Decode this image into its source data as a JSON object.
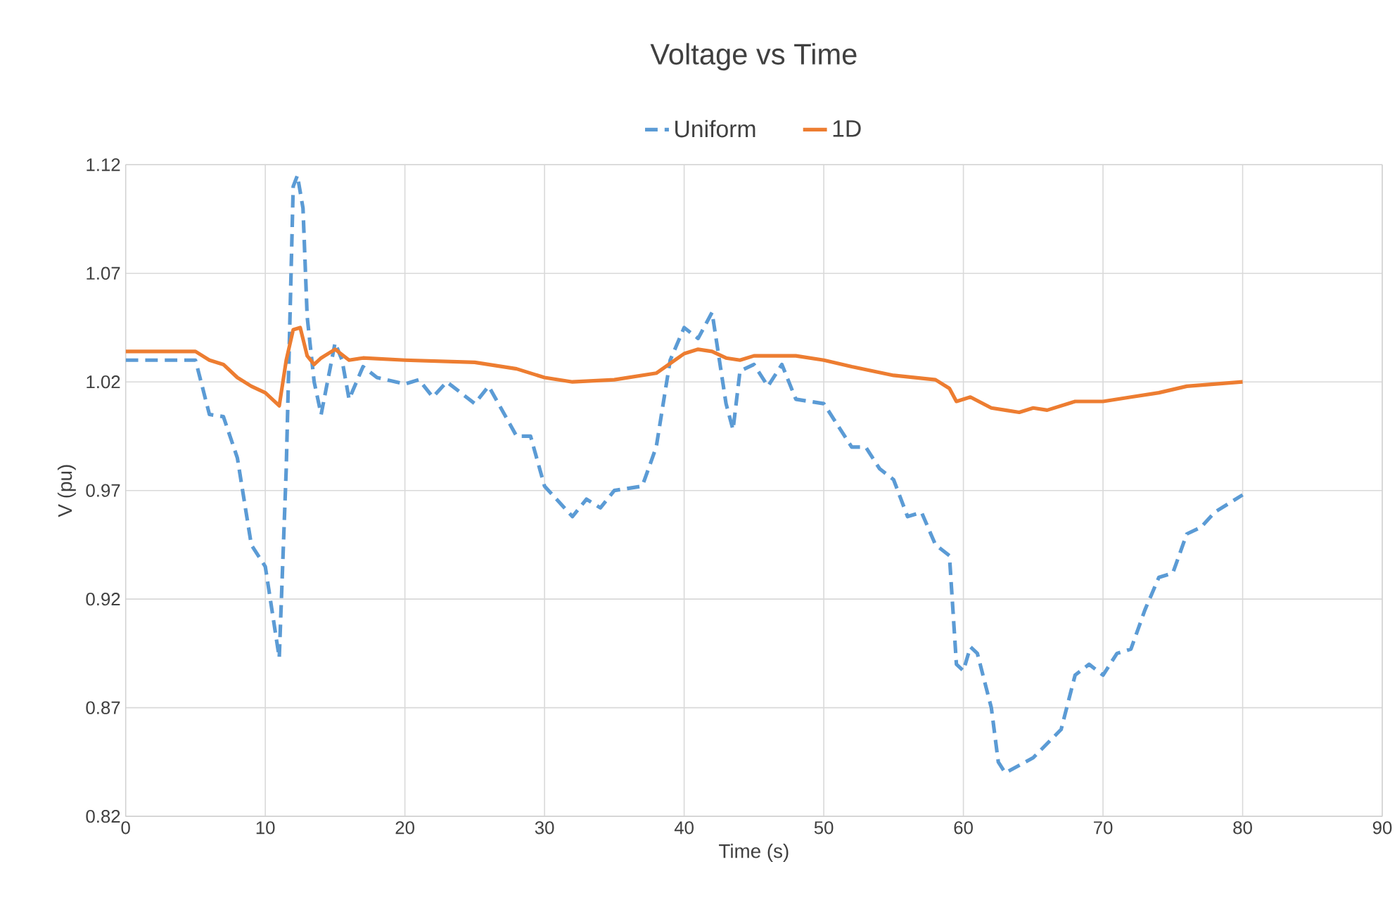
{
  "chart_data": {
    "type": "line",
    "title": "Voltage vs Time",
    "xlabel": "Time (s)",
    "ylabel": "V (pu)",
    "xlim": [
      0,
      90
    ],
    "xticks": [
      0,
      10,
      20,
      30,
      40,
      50,
      60,
      70,
      80,
      90
    ],
    "ylim": [
      0.82,
      1.12
    ],
    "yticks": [
      0.82,
      0.87,
      0.92,
      0.97,
      1.02,
      1.07,
      1.12
    ],
    "grid": true,
    "legend": "top",
    "marker": "none",
    "series": [
      {
        "name": "Uniform",
        "color": "#5b9bd5",
        "line_style": "dashed",
        "x": [
          0,
          5,
          6,
          7,
          8,
          9,
          10,
          11,
          11.5,
          12,
          12.3,
          12.7,
          13,
          13.5,
          14,
          15,
          15.5,
          16,
          17,
          18,
          20,
          21,
          22,
          23,
          25,
          26,
          28,
          29,
          30,
          32,
          33,
          34,
          35,
          37,
          38,
          39,
          40,
          41,
          42,
          43,
          43.5,
          44,
          45,
          46,
          47,
          48,
          50,
          52,
          53,
          54,
          55,
          56,
          57,
          58,
          59,
          59.5,
          60,
          60.5,
          61,
          62,
          62.5,
          63,
          65,
          67,
          68,
          69,
          70,
          71,
          72,
          73,
          74,
          75,
          76,
          77,
          78,
          80
        ],
        "values": [
          1.03,
          1.03,
          1.005,
          1.004,
          0.985,
          0.945,
          0.935,
          0.893,
          0.98,
          1.11,
          1.115,
          1.1,
          1.05,
          1.02,
          1.005,
          1.038,
          1.03,
          1.012,
          1.027,
          1.022,
          1.019,
          1.021,
          1.013,
          1.02,
          1.01,
          1.018,
          0.995,
          0.995,
          0.972,
          0.958,
          0.966,
          0.962,
          0.97,
          0.972,
          0.99,
          1.03,
          1.045,
          1.04,
          1.052,
          1.01,
          0.998,
          1.025,
          1.028,
          1.018,
          1.028,
          1.012,
          1.01,
          0.99,
          0.99,
          0.98,
          0.975,
          0.958,
          0.96,
          0.945,
          0.94,
          0.89,
          0.887,
          0.898,
          0.895,
          0.87,
          0.845,
          0.84,
          0.847,
          0.86,
          0.885,
          0.89,
          0.885,
          0.895,
          0.897,
          0.915,
          0.93,
          0.932,
          0.95,
          0.953,
          0.96,
          0.968
        ]
      },
      {
        "name": "1D",
        "color": "#ed7d31",
        "line_style": "solid",
        "x": [
          0,
          5,
          6,
          7,
          8,
          9,
          10,
          11,
          11.5,
          12,
          12.5,
          13,
          13.5,
          14,
          15,
          16,
          17,
          20,
          25,
          28,
          30,
          32,
          35,
          38,
          40,
          41,
          42,
          43,
          44,
          45,
          48,
          50,
          52,
          55,
          58,
          59,
          59.5,
          60.5,
          62,
          63,
          64,
          65,
          66,
          68,
          70,
          72,
          74,
          76,
          78,
          80
        ],
        "values": [
          1.034,
          1.034,
          1.03,
          1.028,
          1.022,
          1.018,
          1.015,
          1.009,
          1.03,
          1.044,
          1.045,
          1.032,
          1.028,
          1.031,
          1.035,
          1.03,
          1.031,
          1.03,
          1.029,
          1.026,
          1.022,
          1.02,
          1.021,
          1.024,
          1.033,
          1.035,
          1.034,
          1.031,
          1.03,
          1.032,
          1.032,
          1.03,
          1.027,
          1.023,
          1.021,
          1.017,
          1.011,
          1.013,
          1.008,
          1.007,
          1.006,
          1.008,
          1.007,
          1.011,
          1.011,
          1.013,
          1.015,
          1.018,
          1.019,
          1.02
        ]
      }
    ]
  }
}
